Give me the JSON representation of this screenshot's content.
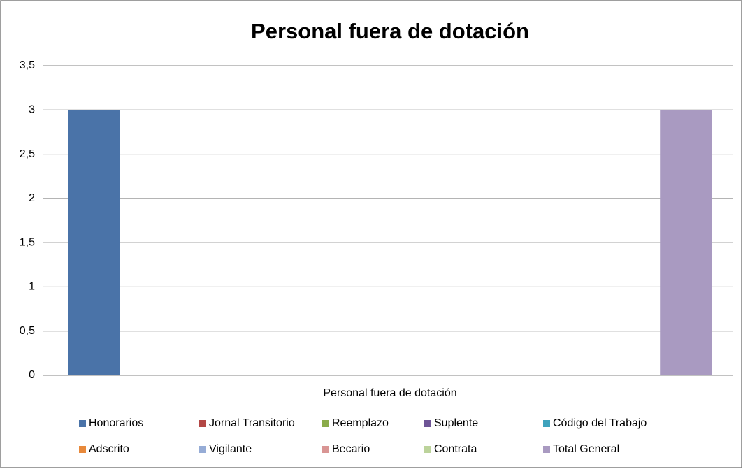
{
  "chart_data": {
    "type": "bar",
    "title": "Personal fuera de dotación",
    "categories": [
      "Personal fuera de dotación"
    ],
    "series": [
      {
        "name": "Honorarios",
        "color": "#4a73a8",
        "values": [
          3
        ]
      },
      {
        "name": "Jornal Transitorio",
        "color": "#b34745",
        "values": [
          0
        ]
      },
      {
        "name": "Reemplazo",
        "color": "#8aab4a",
        "values": [
          0
        ]
      },
      {
        "name": "Suplente",
        "color": "#6e5496",
        "values": [
          0
        ]
      },
      {
        "name": "Código del Trabajo",
        "color": "#3fa3bd",
        "values": [
          0
        ]
      },
      {
        "name": "Adscrito",
        "color": "#e8893b",
        "values": [
          0
        ]
      },
      {
        "name": "Vigilante",
        "color": "#96acd6",
        "values": [
          0
        ]
      },
      {
        "name": "Becario",
        "color": "#d99594",
        "values": [
          0
        ]
      },
      {
        "name": "Contrata",
        "color": "#bcd39b",
        "values": [
          0
        ]
      },
      {
        "name": "Total General",
        "color": "#a99ac1",
        "values": [
          3
        ]
      }
    ],
    "ylim": [
      0,
      3.5
    ],
    "yticks": [
      0,
      {
        "value": 0.5,
        "label": "0,5"
      },
      1,
      {
        "value": 1.5,
        "label": "1,5"
      },
      2,
      {
        "value": 2.5,
        "label": "2,5"
      },
      3,
      {
        "value": 3.5,
        "label": "3,5"
      }
    ],
    "grid": true,
    "legend": "bottom"
  }
}
